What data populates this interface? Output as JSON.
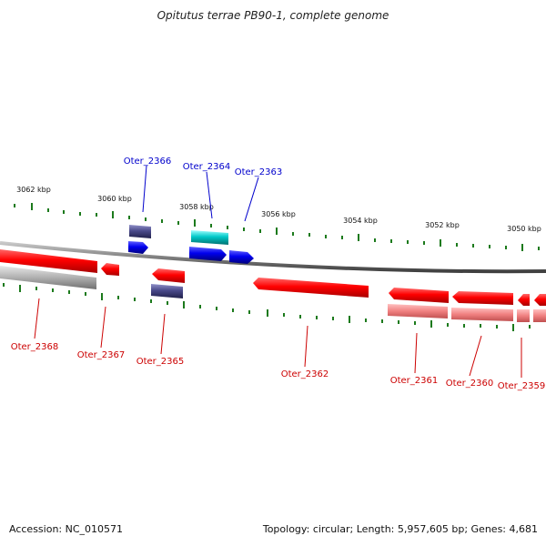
{
  "title": "Opitutus terrae PB90-1, complete genome",
  "footer": {
    "accession": "Accession: NC_010571",
    "topology": "Topology: circular; Length: 5,957,605 bp; Genes: 4,681"
  },
  "colors": {
    "backbone": "#808080",
    "tick": "#1c7a1c",
    "gene_forward_cds": "#0000ee",
    "gene_reverse_cds": "#ee0000",
    "gene_label_forward": "#0000cc",
    "gene_label_reverse": "#cc0000",
    "rna": "#00c0c0",
    "other_feature": "#4a4a8a",
    "pseudo_reverse": "#f08080",
    "pseudo_grey": "#b0b0b0"
  },
  "ticks": [
    {
      "kbp": 3062,
      "label": "3062 kbp"
    },
    {
      "kbp": 3060,
      "label": "3060 kbp"
    },
    {
      "kbp": 3058,
      "label": "3058 kbp"
    },
    {
      "kbp": 3056,
      "label": "3056 kbp"
    },
    {
      "kbp": 3054,
      "label": "3054 kbp"
    },
    {
      "kbp": 3052,
      "label": "3052 kbp"
    },
    {
      "kbp": 3050,
      "label": "3050 kbp"
    }
  ],
  "genes": [
    {
      "name": "Oter_2366",
      "label": "Oter_2366",
      "strand": "+"
    },
    {
      "name": "Oter_2364",
      "label": "Oter_2364",
      "strand": "+"
    },
    {
      "name": "Oter_2363",
      "label": "Oter_2363",
      "strand": "+"
    },
    {
      "name": "Oter_2368",
      "label": "Oter_2368",
      "strand": "-"
    },
    {
      "name": "Oter_2367",
      "label": "Oter_2367",
      "strand": "-"
    },
    {
      "name": "Oter_2365",
      "label": "Oter_2365",
      "strand": "-"
    },
    {
      "name": "Oter_2362",
      "label": "Oter_2362",
      "strand": "-"
    },
    {
      "name": "Oter_2361",
      "label": "Oter_2361",
      "strand": "-"
    },
    {
      "name": "Oter_2360",
      "label": "Oter_2360",
      "strand": "-"
    },
    {
      "name": "Oter_2359",
      "label": "Oter_2359",
      "strand": "-"
    }
  ]
}
